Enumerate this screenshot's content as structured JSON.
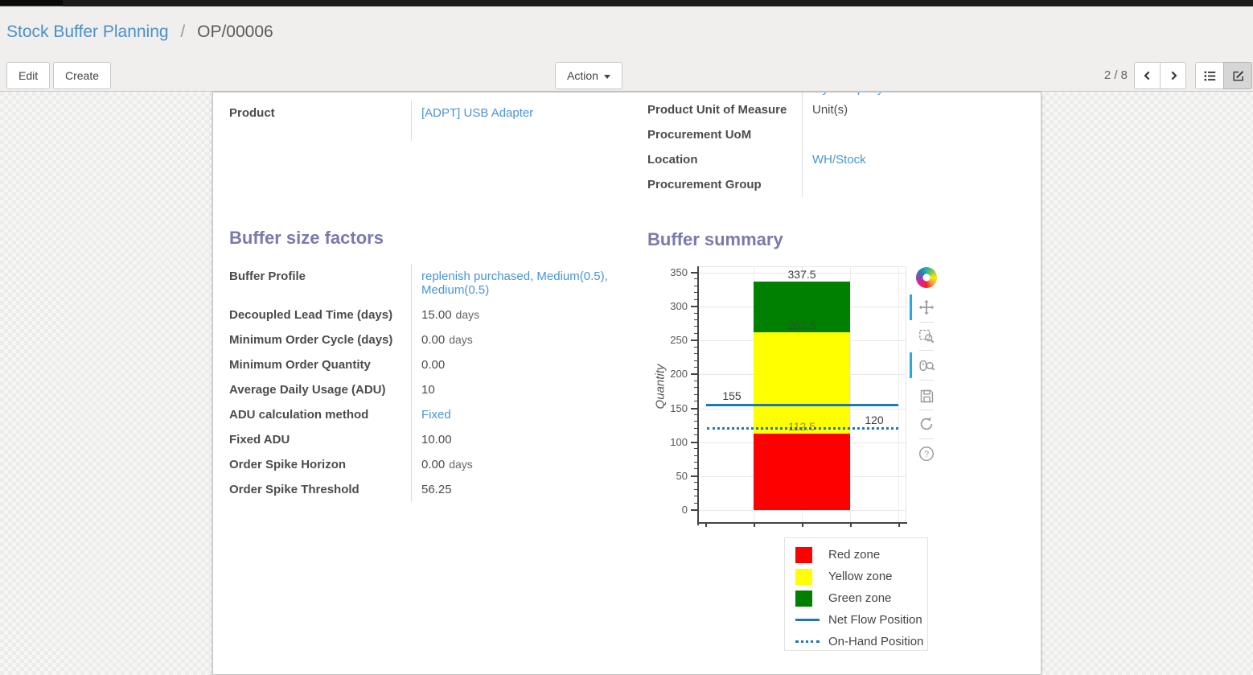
{
  "breadcrumb": {
    "parent": "Stock Buffer Planning",
    "separator": "/",
    "current": "OP/00006"
  },
  "control_panel": {
    "edit_label": "Edit",
    "create_label": "Create",
    "action_label": "Action",
    "pager": "2 / 8"
  },
  "sheet": {
    "product_group": {
      "rows": [
        {
          "label": "Product",
          "value": "[ADPT] USB Adapter"
        }
      ]
    },
    "details_group": {
      "clipped_value": "My Company",
      "rows": [
        {
          "label": "Product Unit of Measure",
          "value": "Unit(s)"
        },
        {
          "label": "Procurement UoM",
          "value": ""
        },
        {
          "label": "Location",
          "value": "WH/Stock"
        },
        {
          "label": "Procurement Group",
          "value": ""
        }
      ]
    },
    "buffer_factors": {
      "title": "Buffer size factors",
      "rows": [
        {
          "label": "Buffer Profile",
          "value": "replenish purchased, Medium(0.5), Medium(0.5)",
          "unit": ""
        },
        {
          "label": "Decoupled Lead Time (days)",
          "value": "15.00",
          "unit": "days"
        },
        {
          "label": "Minimum Order Cycle (days)",
          "value": "0.00",
          "unit": "days"
        },
        {
          "label": "Minimum Order Quantity",
          "value": "0.00",
          "unit": ""
        },
        {
          "label": "Average Daily Usage (ADU)",
          "value": "10",
          "unit": ""
        },
        {
          "label": "ADU calculation method",
          "value": "Fixed",
          "unit": ""
        },
        {
          "label": "Fixed ADU",
          "value": "10.00",
          "unit": ""
        },
        {
          "label": "Order Spike Horizon",
          "value": "0.00",
          "unit": "days"
        },
        {
          "label": "Order Spike Threshold",
          "value": "56.25",
          "unit": ""
        }
      ]
    },
    "buffer_summary": {
      "title": "Buffer summary"
    }
  },
  "chart_data": {
    "type": "bar",
    "title": "Buffer summary",
    "xlabel": "",
    "ylabel": "Quantity",
    "ylim": [
      0,
      350
    ],
    "yticks": [
      0,
      50,
      100,
      150,
      200,
      250,
      300,
      350
    ],
    "grid": true,
    "categories": [
      ""
    ],
    "zones": [
      {
        "name": "Red zone",
        "from": 0,
        "to": 112.5,
        "color": "#ff0000"
      },
      {
        "name": "Yellow zone",
        "from": 112.5,
        "to": 262.5,
        "color": "#ffff00"
      },
      {
        "name": "Green zone",
        "from": 262.5,
        "to": 337.5,
        "color": "#008000"
      }
    ],
    "lines": [
      {
        "name": "Net Flow Position",
        "value": 155,
        "style": "solid",
        "color": "#1f77b4",
        "label_side": "left"
      },
      {
        "name": "On-Hand Position",
        "value": 120,
        "style": "dotted",
        "color": "#1f77b4",
        "label_side": "right"
      }
    ],
    "value_labels": {
      "green_top": "337.5",
      "yellow_top": "262.5",
      "red_top": "112.5",
      "net_flow": "155",
      "on_hand": "120"
    },
    "legend_position": "below-right",
    "legend": [
      "Red zone",
      "Yellow zone",
      "Green zone",
      "Net Flow Position",
      "On-Hand Position"
    ],
    "legend_colors": [
      "#ff0000",
      "#ffff00",
      "#008000",
      "#1f77b4",
      "#1f77b4"
    ]
  }
}
